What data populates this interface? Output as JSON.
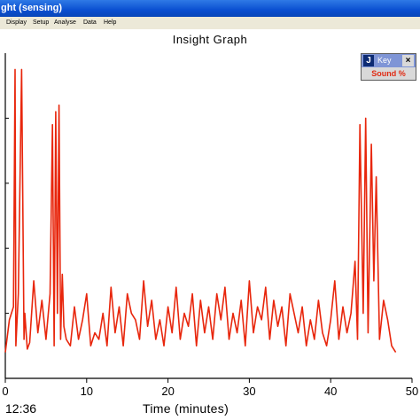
{
  "window": {
    "title": "ght (sensing)"
  },
  "menu": [
    "Display",
    "Setup",
    "Analyse",
    "Data",
    "Help"
  ],
  "graph_title": "Insight Graph",
  "key": {
    "label": "Key",
    "close": "×",
    "series": "Sound  %"
  },
  "clock": "12:36",
  "colors": {
    "series": "#e8260c",
    "titlebar": "#0a4fd0",
    "menubar": "#ece9d8"
  },
  "chart_data": {
    "type": "line",
    "xlabel": "Time (minutes)",
    "ylabel": "",
    "xlim": [
      0,
      50
    ],
    "xticks": [
      "0",
      "10",
      "20",
      "30",
      "40",
      "50"
    ],
    "ylim": [
      0,
      100
    ],
    "series": [
      {
        "name": "Sound %",
        "x": [
          0,
          0.5,
          1,
          1.2,
          1.3,
          1.6,
          2,
          2.3,
          2.4,
          2.7,
          3,
          3.5,
          4,
          4.5,
          5,
          5.5,
          5.8,
          6,
          6.2,
          6.4,
          6.6,
          6.8,
          7,
          7.2,
          7.5,
          8,
          8.5,
          9,
          9.5,
          10,
          10.5,
          11,
          11.5,
          12,
          12.5,
          13,
          13.5,
          14,
          14.5,
          15,
          15.5,
          16,
          16.5,
          17,
          17.5,
          18,
          18.5,
          19,
          19.5,
          20,
          20.5,
          21,
          21.5,
          22,
          22.5,
          23,
          23.5,
          24,
          24.5,
          25,
          25.5,
          26,
          26.5,
          27,
          27.5,
          28,
          28.5,
          29,
          29.5,
          30,
          30.5,
          31,
          31.5,
          32,
          32.5,
          33,
          33.5,
          34,
          34.5,
          35,
          35.5,
          36,
          36.5,
          37,
          37.5,
          38,
          38.5,
          39,
          39.5,
          40,
          40.5,
          41,
          41.5,
          42,
          42.5,
          43,
          43.3,
          43.6,
          44,
          44.3,
          44.6,
          45,
          45.3,
          45.6,
          46,
          46.5,
          47,
          47.5,
          48
        ],
        "values": [
          8,
          18,
          22,
          95,
          10,
          26,
          95,
          12,
          20,
          9,
          11,
          30,
          14,
          24,
          12,
          26,
          78,
          10,
          82,
          20,
          84,
          12,
          32,
          16,
          12,
          10,
          22,
          12,
          18,
          26,
          10,
          14,
          12,
          20,
          10,
          28,
          14,
          22,
          10,
          26,
          20,
          18,
          12,
          30,
          16,
          24,
          12,
          18,
          10,
          22,
          14,
          28,
          12,
          20,
          16,
          26,
          10,
          24,
          14,
          22,
          12,
          26,
          18,
          28,
          12,
          20,
          14,
          24,
          10,
          30,
          14,
          22,
          18,
          28,
          12,
          24,
          16,
          22,
          10,
          26,
          20,
          14,
          22,
          10,
          18,
          12,
          24,
          14,
          10,
          18,
          30,
          12,
          22,
          14,
          20,
          36,
          12,
          78,
          20,
          80,
          14,
          72,
          30,
          62,
          12,
          24,
          18,
          10,
          8
        ]
      }
    ]
  }
}
